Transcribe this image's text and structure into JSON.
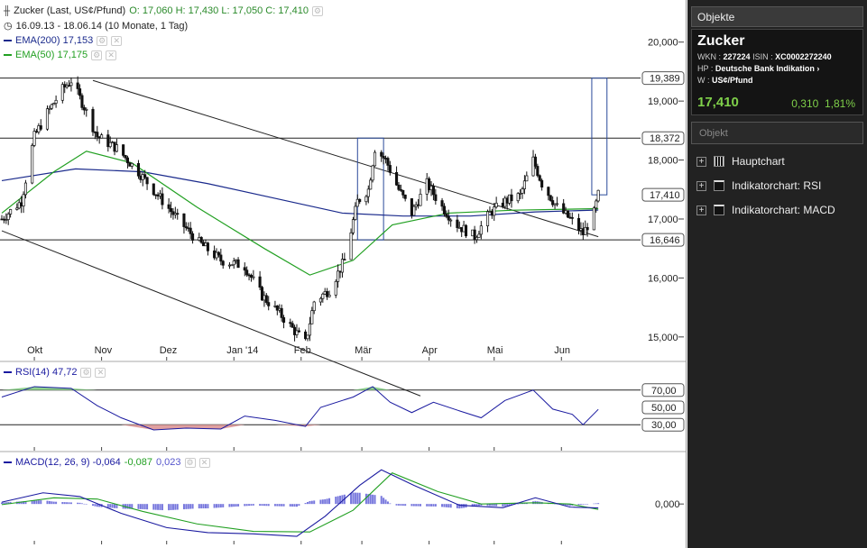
{
  "header": {
    "instrument": "Zucker (Last, US¢/Pfund)",
    "ohlc": "O: 17,060  H: 17,430  L: 17,050  C: 17,410",
    "period": "16.09.13 - 18.06.14 (10 Monate, 1 Tag)",
    "ema200_label": "EMA(200)  17,153",
    "ema50_label": "EMA(50)  17,175",
    "rsi_label": "RSI(14)  47,72",
    "macd_label": "MACD(12, 26, 9)  -0,064",
    "macd_signal": "-0,087",
    "macd_hist": "0,023"
  },
  "colors": {
    "price": "#111111",
    "ema200": "#1a2a8c",
    "ema50": "#22a022",
    "channel": "#222222",
    "rsi_line": "#1a1aa0",
    "rsi_over": "#8fd18f",
    "rsi_under": "#e0a0a0",
    "macd_hist": "#7777dd",
    "box": "#2a4a9a"
  },
  "chart_data": [
    {
      "type": "candlestick",
      "title": "Zucker (Last, US¢/Pfund)",
      "x_tick_labels": [
        "Okt",
        "Nov",
        "Dez",
        "Jan '14",
        "Feb",
        "Mär",
        "Apr",
        "Mai",
        "Jun"
      ],
      "x_range": [
        "2013-09-16",
        "2014-06-18"
      ],
      "ylim": [
        14.6,
        20.5
      ],
      "y_tick_labels": [
        "20,000",
        "19,000",
        "18,000",
        "17,000",
        "16,000",
        "15,000"
      ],
      "y_ticks": [
        20.0,
        19.0,
        18.0,
        17.0,
        16.0,
        15.0
      ],
      "horizontal_levels": [
        {
          "value": 19.389,
          "label": "19,389"
        },
        {
          "value": 18.372,
          "label": "18,372"
        },
        {
          "value": 17.41,
          "label": "17,410"
        },
        {
          "value": 16.646,
          "label": "16,646"
        }
      ],
      "close_series": [
        {
          "date": "2013-09-16",
          "close": 17.0
        },
        {
          "date": "2013-09-25",
          "close": 17.3
        },
        {
          "date": "2013-10-01",
          "close": 18.4
        },
        {
          "date": "2013-10-07",
          "close": 18.8
        },
        {
          "date": "2013-10-14",
          "close": 19.2
        },
        {
          "date": "2013-10-18",
          "close": 19.35
        },
        {
          "date": "2013-10-24",
          "close": 18.9
        },
        {
          "date": "2013-10-30",
          "close": 18.4
        },
        {
          "date": "2013-11-08",
          "close": 18.2
        },
        {
          "date": "2013-11-18",
          "close": 17.8
        },
        {
          "date": "2013-11-27",
          "close": 17.4
        },
        {
          "date": "2013-12-06",
          "close": 17.0
        },
        {
          "date": "2013-12-16",
          "close": 16.6
        },
        {
          "date": "2013-12-26",
          "close": 16.3
        },
        {
          "date": "2014-01-06",
          "close": 16.2
        },
        {
          "date": "2014-01-14",
          "close": 15.7
        },
        {
          "date": "2014-01-22",
          "close": 15.4
        },
        {
          "date": "2014-01-29",
          "close": 15.1
        },
        {
          "date": "2014-02-03",
          "close": 14.9
        },
        {
          "date": "2014-02-07",
          "close": 15.6
        },
        {
          "date": "2014-02-14",
          "close": 15.8
        },
        {
          "date": "2014-02-21",
          "close": 16.3
        },
        {
          "date": "2014-02-27",
          "close": 17.3
        },
        {
          "date": "2014-03-04",
          "close": 17.5
        },
        {
          "date": "2014-03-07",
          "close": 18.2
        },
        {
          "date": "2014-03-12",
          "close": 18.0
        },
        {
          "date": "2014-03-18",
          "close": 17.5
        },
        {
          "date": "2014-03-24",
          "close": 17.1
        },
        {
          "date": "2014-03-31",
          "close": 17.6
        },
        {
          "date": "2014-04-07",
          "close": 17.2
        },
        {
          "date": "2014-04-14",
          "close": 16.9
        },
        {
          "date": "2014-04-22",
          "close": 16.7
        },
        {
          "date": "2014-04-29",
          "close": 17.1
        },
        {
          "date": "2014-05-06",
          "close": 17.3
        },
        {
          "date": "2014-05-13",
          "close": 17.4
        },
        {
          "date": "2014-05-19",
          "close": 18.0
        },
        {
          "date": "2014-05-23",
          "close": 17.6
        },
        {
          "date": "2014-05-30",
          "close": 17.2
        },
        {
          "date": "2014-06-05",
          "close": 17.0
        },
        {
          "date": "2014-06-11",
          "close": 16.75
        },
        {
          "date": "2014-06-16",
          "close": 17.1
        },
        {
          "date": "2014-06-18",
          "close": 17.41
        }
      ],
      "ema200": [
        {
          "date": "2013-09-16",
          "value": 17.65
        },
        {
          "date": "2013-10-20",
          "value": 17.85
        },
        {
          "date": "2013-11-20",
          "value": 17.8
        },
        {
          "date": "2013-12-20",
          "value": 17.6
        },
        {
          "date": "2014-01-20",
          "value": 17.35
        },
        {
          "date": "2014-02-20",
          "value": 17.1
        },
        {
          "date": "2014-03-20",
          "value": 17.05
        },
        {
          "date": "2014-04-20",
          "value": 17.05
        },
        {
          "date": "2014-05-20",
          "value": 17.12
        },
        {
          "date": "2014-06-18",
          "value": 17.153
        }
      ],
      "ema50": [
        {
          "date": "2013-09-16",
          "value": 17.1
        },
        {
          "date": "2013-10-10",
          "value": 17.8
        },
        {
          "date": "2013-10-25",
          "value": 18.15
        },
        {
          "date": "2013-11-15",
          "value": 17.95
        },
        {
          "date": "2013-12-15",
          "value": 17.2
        },
        {
          "date": "2014-01-15",
          "value": 16.5
        },
        {
          "date": "2014-02-05",
          "value": 16.05
        },
        {
          "date": "2014-02-25",
          "value": 16.3
        },
        {
          "date": "2014-03-15",
          "value": 16.9
        },
        {
          "date": "2014-04-10",
          "value": 17.1
        },
        {
          "date": "2014-05-10",
          "value": 17.15
        },
        {
          "date": "2014-06-18",
          "value": 17.175
        }
      ],
      "channel_lines": [
        {
          "from": {
            "date": "2013-10-28",
            "value": 19.35
          },
          "to": {
            "date": "2014-06-18",
            "value": 16.7
          }
        },
        {
          "from": {
            "date": "2013-09-16",
            "value": 16.8
          },
          "to": {
            "date": "2014-03-28",
            "value": 14.0
          }
        }
      ],
      "boxes": [
        {
          "from_date": "2014-02-27",
          "to_date": "2014-03-11",
          "low": 16.646,
          "high": 18.372
        },
        {
          "from_date": "2014-06-15",
          "to_date": "2014-06-22",
          "low": 17.41,
          "high": 19.389
        }
      ]
    },
    {
      "type": "line",
      "title": "RSI(14)",
      "ylim": [
        0,
        100
      ],
      "y_tick_labels": [
        "70,00",
        "50,00",
        "30,00"
      ],
      "y_ticks": [
        70,
        50,
        30
      ],
      "last_value": 47.72,
      "series": [
        {
          "date": "2013-09-16",
          "value": 62
        },
        {
          "date": "2013-10-01",
          "value": 74
        },
        {
          "date": "2013-10-18",
          "value": 72
        },
        {
          "date": "2013-10-30",
          "value": 52
        },
        {
          "date": "2013-11-10",
          "value": 38
        },
        {
          "date": "2013-11-25",
          "value": 24
        },
        {
          "date": "2013-12-10",
          "value": 26
        },
        {
          "date": "2013-12-26",
          "value": 25
        },
        {
          "date": "2014-01-06",
          "value": 40
        },
        {
          "date": "2014-01-20",
          "value": 35
        },
        {
          "date": "2014-02-03",
          "value": 28
        },
        {
          "date": "2014-02-10",
          "value": 50
        },
        {
          "date": "2014-02-25",
          "value": 62
        },
        {
          "date": "2014-03-06",
          "value": 74
        },
        {
          "date": "2014-03-14",
          "value": 56
        },
        {
          "date": "2014-03-24",
          "value": 44
        },
        {
          "date": "2014-04-03",
          "value": 56
        },
        {
          "date": "2014-04-15",
          "value": 46
        },
        {
          "date": "2014-04-25",
          "value": 38
        },
        {
          "date": "2014-05-06",
          "value": 58
        },
        {
          "date": "2014-05-19",
          "value": 70
        },
        {
          "date": "2014-05-28",
          "value": 48
        },
        {
          "date": "2014-06-06",
          "value": 42
        },
        {
          "date": "2014-06-11",
          "value": 30
        },
        {
          "date": "2014-06-18",
          "value": 47.72
        }
      ]
    },
    {
      "type": "line",
      "title": "MACD(12, 26, 9)",
      "y_tick_labels": [
        "0,000"
      ],
      "y_ticks": [
        0
      ],
      "ylim": [
        -0.65,
        0.8
      ],
      "series": [
        {
          "name": "MACD",
          "values": [
            {
              "date": "2013-09-16",
              "value": 0.03
            },
            {
              "date": "2013-10-05",
              "value": 0.18
            },
            {
              "date": "2013-10-22",
              "value": 0.12
            },
            {
              "date": "2013-11-10",
              "value": -0.15
            },
            {
              "date": "2013-12-01",
              "value": -0.38
            },
            {
              "date": "2013-12-20",
              "value": -0.46
            },
            {
              "date": "2014-01-10",
              "value": -0.48
            },
            {
              "date": "2014-01-30",
              "value": -0.52
            },
            {
              "date": "2014-02-12",
              "value": -0.2
            },
            {
              "date": "2014-02-28",
              "value": 0.3
            },
            {
              "date": "2014-03-10",
              "value": 0.55
            },
            {
              "date": "2014-03-25",
              "value": 0.3
            },
            {
              "date": "2014-04-15",
              "value": -0.02
            },
            {
              "date": "2014-05-05",
              "value": -0.06
            },
            {
              "date": "2014-05-20",
              "value": 0.1
            },
            {
              "date": "2014-06-05",
              "value": -0.05
            },
            {
              "date": "2014-06-18",
              "value": -0.064
            }
          ]
        },
        {
          "name": "Signal",
          "values": [
            {
              "date": "2013-09-16",
              "value": -0.01
            },
            {
              "date": "2013-10-10",
              "value": 0.1
            },
            {
              "date": "2013-10-30",
              "value": 0.08
            },
            {
              "date": "2013-11-20",
              "value": -0.12
            },
            {
              "date": "2013-12-15",
              "value": -0.32
            },
            {
              "date": "2014-01-10",
              "value": -0.44
            },
            {
              "date": "2014-02-05",
              "value": -0.45
            },
            {
              "date": "2014-02-25",
              "value": -0.1
            },
            {
              "date": "2014-03-15",
              "value": 0.5
            },
            {
              "date": "2014-04-05",
              "value": 0.2
            },
            {
              "date": "2014-04-25",
              "value": 0.0
            },
            {
              "date": "2014-05-20",
              "value": 0.02
            },
            {
              "date": "2014-06-05",
              "value": 0.0
            },
            {
              "date": "2014-06-18",
              "value": -0.087
            }
          ]
        }
      ],
      "histogram_last": 0.023
    }
  ],
  "sidebar": {
    "title": "Objekte",
    "name": "Zucker",
    "wkn_label": "WKN :",
    "wkn": "227224",
    "isin_label": "ISIN :",
    "isin": "XC0002272240",
    "hp_label": "HP :",
    "hp": "Deutsche Bank Indikation ›",
    "w_label": "W :",
    "w": "US¢/Pfund",
    "price": "17,410",
    "change": "0,310",
    "change_pct": "1,81%",
    "search_placeholder": "Objekt",
    "items": [
      {
        "label": "Hauptchart",
        "icon": "grid-icon"
      },
      {
        "label": "Indikatorchart: RSI",
        "icon": "indicator-icon"
      },
      {
        "label": "Indikatorchart: MACD",
        "icon": "indicator-icon"
      }
    ]
  }
}
